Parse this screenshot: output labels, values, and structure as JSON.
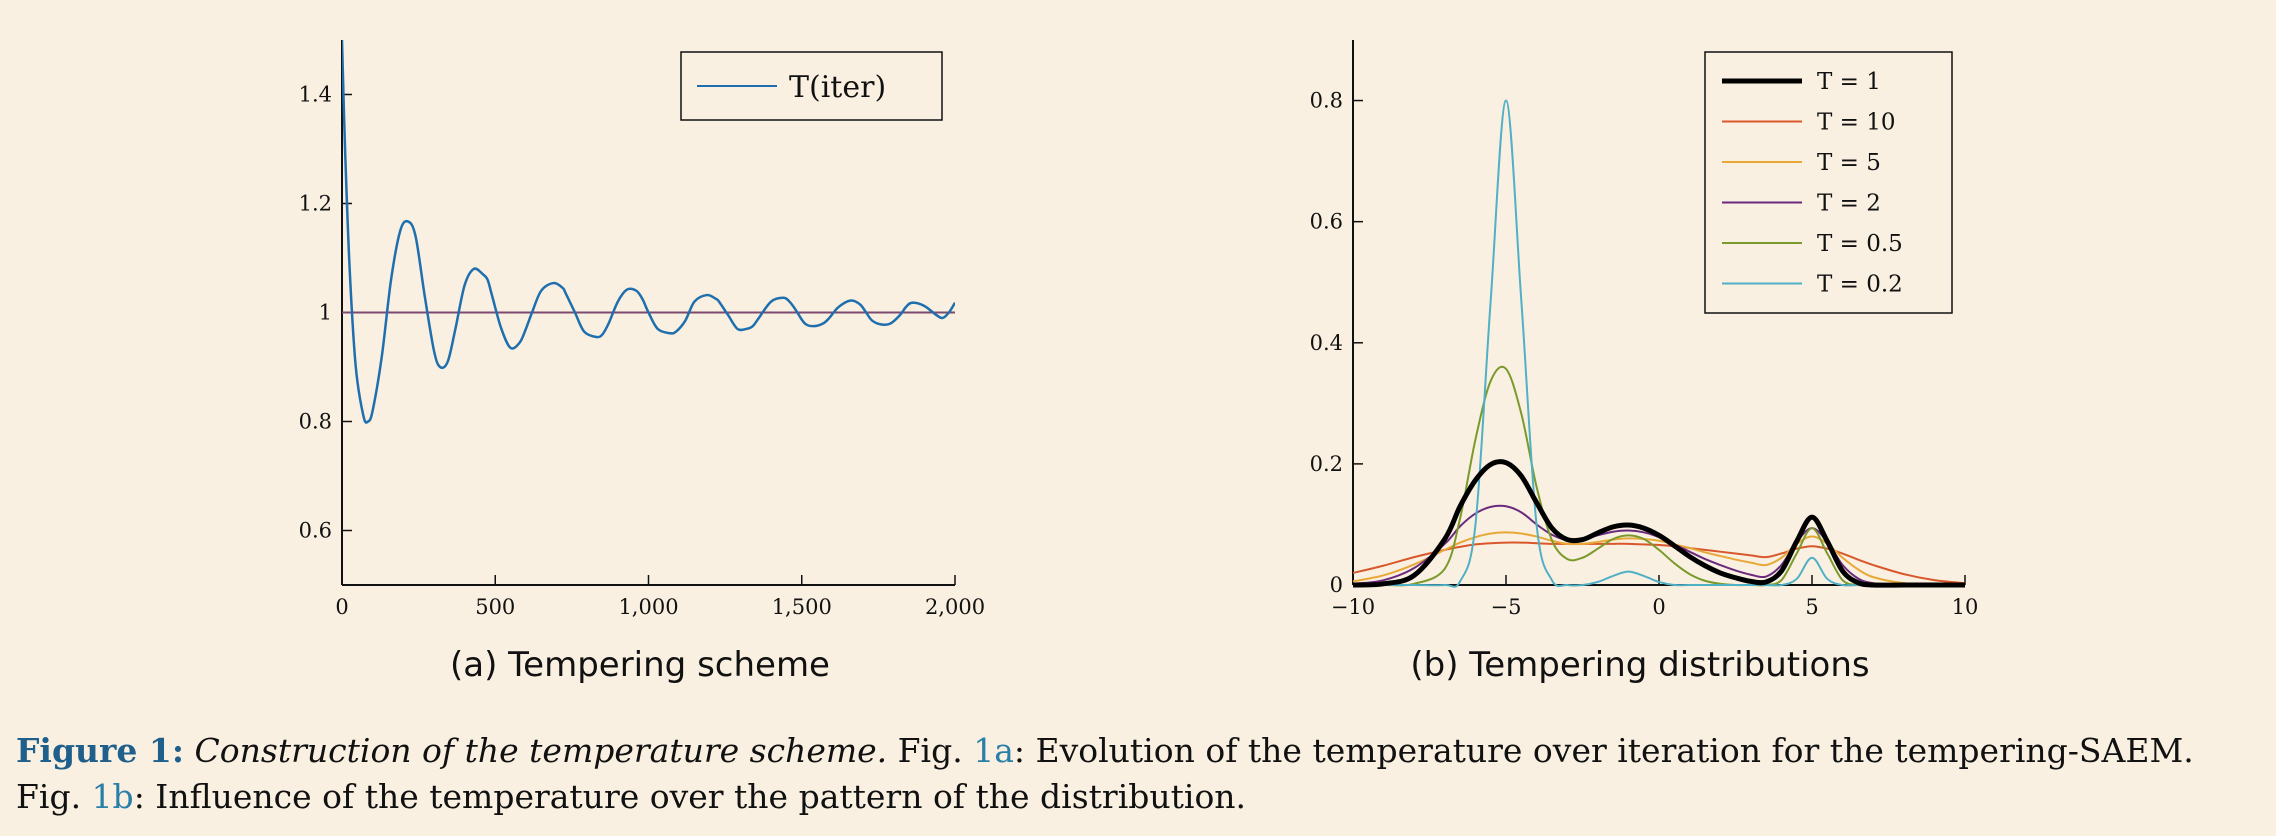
{
  "chart_data": [
    {
      "type": "line",
      "subcaption": "(a) Tempering scheme",
      "xlim": [
        0,
        2000
      ],
      "ylim": [
        0.5,
        1.5
      ],
      "xticks": [
        {
          "v": 0,
          "label": "0"
        },
        {
          "v": 500,
          "label": "500"
        },
        {
          "v": 1000,
          "label": "1,000"
        },
        {
          "v": 1500,
          "label": "1,500"
        },
        {
          "v": 2000,
          "label": "2,000"
        }
      ],
      "yticks": [
        {
          "v": 0.6,
          "label": "0.6"
        },
        {
          "v": 0.8,
          "label": "0.8"
        },
        {
          "v": 1.0,
          "label": "1"
        },
        {
          "v": 1.2,
          "label": "1.2"
        },
        {
          "v": 1.4,
          "label": "1.4"
        }
      ],
      "legend": {
        "placement": "top-right",
        "entry": "T(iter)"
      },
      "reference_line": {
        "y": 1,
        "color": "#7b4a6e"
      },
      "series": [
        {
          "name": "T(iter)",
          "color": "#1f6fae",
          "x": [
            0,
            10,
            25,
            45,
            70,
            85,
            100,
            130,
            160,
            190,
            215,
            240,
            270,
            300,
            320,
            345,
            370,
            400,
            430,
            460,
            475,
            490,
            520,
            550,
            580,
            600,
            620,
            650,
            690,
            720,
            730,
            760,
            790,
            830,
            850,
            870,
            900,
            930,
            960,
            980,
            1000,
            1030,
            1070,
            1090,
            1120,
            1150,
            1190,
            1220,
            1230,
            1260,
            1290,
            1320,
            1340,
            1360,
            1400,
            1440,
            1460,
            1480,
            1510,
            1540,
            1570,
            1590,
            1620,
            1660,
            1690,
            1710,
            1730,
            1760,
            1790,
            1820,
            1840,
            1860,
            1900,
            1940,
            1960,
            1980,
            2000
          ],
          "y": [
            1.5,
            1.3,
            1.08,
            0.9,
            0.81,
            0.8,
            0.82,
            0.92,
            1.06,
            1.15,
            1.167,
            1.14,
            1.03,
            0.93,
            0.9,
            0.91,
            0.97,
            1.05,
            1.08,
            1.07,
            1.06,
            1.03,
            0.97,
            0.935,
            0.945,
            0.97,
            1.0,
            1.04,
            1.054,
            1.045,
            1.035,
            1.0,
            0.965,
            0.955,
            0.96,
            0.98,
            1.02,
            1.042,
            1.04,
            1.025,
            1.0,
            0.97,
            0.962,
            0.965,
            0.985,
            1.02,
            1.032,
            1.025,
            1.02,
            0.995,
            0.97,
            0.97,
            0.975,
            0.99,
            1.02,
            1.027,
            1.02,
            1.005,
            0.98,
            0.975,
            0.98,
            0.99,
            1.01,
            1.022,
            1.015,
            1.0,
            0.985,
            0.978,
            0.98,
            0.995,
            1.01,
            1.018,
            1.012,
            0.995,
            0.99,
            1.0,
            1.018
          ]
        }
      ]
    },
    {
      "type": "line",
      "subcaption": "(b) Tempering distributions",
      "xlim": [
        -10,
        10
      ],
      "ylim": [
        0,
        0.9
      ],
      "xticks": [
        {
          "v": -10,
          "label": "−10"
        },
        {
          "v": -5,
          "label": "−5"
        },
        {
          "v": 0,
          "label": "0"
        },
        {
          "v": 5,
          "label": "5"
        },
        {
          "v": 10,
          "label": "10"
        }
      ],
      "yticks": [
        {
          "v": 0,
          "label": "0"
        },
        {
          "v": 0.2,
          "label": "0.2"
        },
        {
          "v": 0.4,
          "label": "0.4"
        },
        {
          "v": 0.6,
          "label": "0.6"
        },
        {
          "v": 0.8,
          "label": "0.8"
        }
      ],
      "legend": {
        "placement": "top-right"
      },
      "x": [
        -10,
        -9,
        -8,
        -7,
        -6.5,
        -6,
        -5.5,
        -5,
        -4.5,
        -4,
        -3.5,
        -3,
        -2.5,
        -2,
        -1.5,
        -1,
        -0.5,
        0,
        0.5,
        1,
        1.5,
        2,
        2.5,
        3,
        3.5,
        4,
        4.5,
        5,
        5.5,
        6,
        6.5,
        7,
        8,
        9,
        10
      ],
      "series": [
        {
          "name": "T = 1",
          "color": "#000000",
          "width": 5,
          "values": [
            0.0,
            0.002,
            0.016,
            0.076,
            0.13,
            0.173,
            0.199,
            0.202,
            0.18,
            0.136,
            0.094,
            0.075,
            0.075,
            0.086,
            0.096,
            0.099,
            0.094,
            0.082,
            0.065,
            0.047,
            0.032,
            0.02,
            0.012,
            0.006,
            0.005,
            0.023,
            0.072,
            0.112,
            0.072,
            0.023,
            0.004,
            0.0,
            0.0,
            0.0,
            0.0
          ]
        },
        {
          "name": "T = 10",
          "color": "#d9582b",
          "width": 2,
          "values": [
            0.02,
            0.032,
            0.046,
            0.058,
            0.063,
            0.067,
            0.069,
            0.07,
            0.07,
            0.069,
            0.068,
            0.068,
            0.068,
            0.068,
            0.068,
            0.068,
            0.067,
            0.066,
            0.064,
            0.061,
            0.058,
            0.055,
            0.052,
            0.049,
            0.046,
            0.052,
            0.06,
            0.064,
            0.06,
            0.052,
            0.042,
            0.033,
            0.018,
            0.008,
            0.003
          ]
        },
        {
          "name": "T = 5",
          "color": "#e8a838",
          "width": 2,
          "values": [
            0.006,
            0.016,
            0.034,
            0.058,
            0.07,
            0.079,
            0.085,
            0.087,
            0.085,
            0.08,
            0.073,
            0.068,
            0.068,
            0.071,
            0.075,
            0.077,
            0.076,
            0.073,
            0.067,
            0.061,
            0.054,
            0.048,
            0.042,
            0.037,
            0.033,
            0.045,
            0.068,
            0.08,
            0.068,
            0.045,
            0.026,
            0.013,
            0.003,
            0.001,
            0.0
          ]
        },
        {
          "name": "T = 2",
          "color": "#6c2a7e",
          "width": 2,
          "values": [
            0.002,
            0.008,
            0.028,
            0.068,
            0.097,
            0.118,
            0.129,
            0.13,
            0.12,
            0.1,
            0.083,
            0.074,
            0.075,
            0.082,
            0.088,
            0.09,
            0.087,
            0.079,
            0.067,
            0.055,
            0.043,
            0.033,
            0.024,
            0.017,
            0.014,
            0.033,
            0.071,
            0.094,
            0.071,
            0.033,
            0.011,
            0.003,
            0.0,
            0.0,
            0.0
          ]
        },
        {
          "name": "T = 0.5",
          "color": "#7a9a2c",
          "width": 2,
          "values": [
            0.0,
            0.0,
            0.002,
            0.027,
            0.11,
            0.24,
            0.337,
            0.357,
            0.283,
            0.162,
            0.074,
            0.043,
            0.045,
            0.06,
            0.076,
            0.082,
            0.076,
            0.058,
            0.036,
            0.018,
            0.007,
            0.002,
            0.0,
            0.0,
            0.0,
            0.008,
            0.052,
            0.094,
            0.052,
            0.008,
            0.0,
            0.0,
            0.0,
            0.0,
            0.0
          ]
        },
        {
          "name": "T = 0.2",
          "color": "#4fb0c6",
          "width": 2,
          "values": [
            0.0,
            0.0,
            0.0,
            0.0,
            0.006,
            0.099,
            0.47,
            0.8,
            0.47,
            0.099,
            0.008,
            0.0,
            0.0,
            0.005,
            0.015,
            0.022,
            0.015,
            0.005,
            0.0,
            0.0,
            0.0,
            0.0,
            0.0,
            0.0,
            0.0,
            0.0,
            0.01,
            0.045,
            0.01,
            0.0,
            0.0,
            0.0,
            0.0,
            0.0,
            0.0
          ]
        }
      ]
    }
  ],
  "caption": {
    "label": "Figure 1:",
    "title": "Construction of the temperature scheme.",
    "part1": " Fig. ",
    "ref_a": "1a",
    "part2": ": Evolution of the temperature over iteration for the tempering-SAEM. Fig. ",
    "ref_b": "1b",
    "part3": ": Influence of the temperature over the pattern of the distribution."
  }
}
